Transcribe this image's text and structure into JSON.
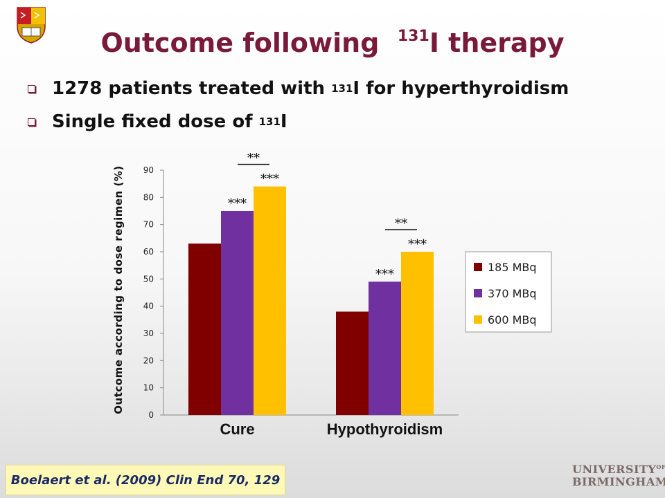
{
  "slide": {
    "title_main": "Outcome following",
    "title_sup": "131",
    "title_end": "I therapy",
    "bullets": [
      {
        "pre": "1278 patients treated with",
        "sup": "131",
        "post": "I for hyperthyroidism"
      },
      {
        "pre": "Single fixed dose of",
        "sup": "131",
        "post": "I"
      }
    ],
    "citation": "Boelaert et al. (2009) Clin End 70, 129",
    "university_line1": "UNIVERSITY",
    "university_of": "OF",
    "university_line2": "BIRMINGHAM",
    "colors": {
      "title": "#7a1a3a",
      "citation_bg": "#fff9b8",
      "citation_text": "#1a2a66"
    }
  },
  "chart_data": {
    "type": "bar",
    "categories": [
      "Cure",
      "Hypothyroidism"
    ],
    "series": [
      {
        "name": "185 MBq",
        "color": "#800000",
        "values": [
          63,
          38
        ]
      },
      {
        "name": "370 MBq",
        "color": "#7030a0",
        "values": [
          75,
          49
        ]
      },
      {
        "name": "600 MBq",
        "color": "#ffc000",
        "values": [
          84,
          60
        ]
      }
    ],
    "ylabel": "Outcome according to dose regimen (%)",
    "ylim": [
      0,
      90
    ],
    "yticks": [
      0,
      10,
      20,
      30,
      40,
      50,
      60,
      70,
      80,
      90
    ],
    "grid": false,
    "legend": "right",
    "significance": [
      {
        "category": 0,
        "series": 1,
        "label": "***"
      },
      {
        "category": 0,
        "series": 2,
        "label": "***"
      },
      {
        "category": 0,
        "pair": [
          1,
          2
        ],
        "label": "**"
      },
      {
        "category": 1,
        "series": 1,
        "label": "***"
      },
      {
        "category": 1,
        "series": 2,
        "label": "***"
      },
      {
        "category": 1,
        "pair": [
          1,
          2
        ],
        "label": "**"
      }
    ]
  }
}
